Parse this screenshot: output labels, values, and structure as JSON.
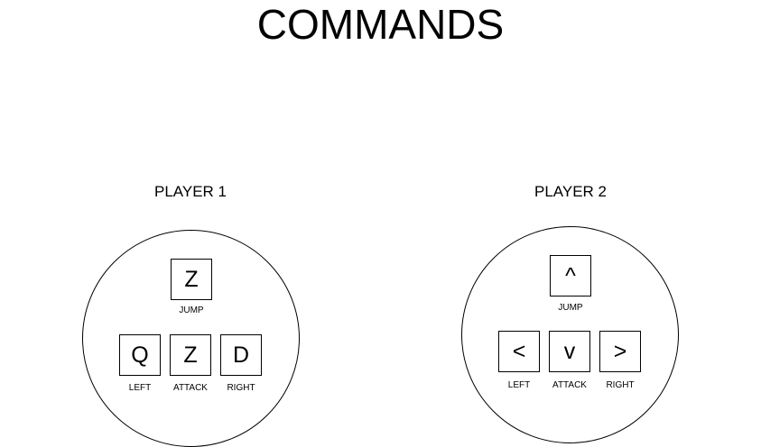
{
  "title": "COMMANDS",
  "players": [
    {
      "label": "PLAYER 1",
      "keys": {
        "jump": {
          "key": "Z",
          "label": "JUMP"
        },
        "left": {
          "key": "Q",
          "label": "LEFT"
        },
        "attack": {
          "key": "Z",
          "label": "ATTACK"
        },
        "right": {
          "key": "D",
          "label": "RIGHT"
        }
      }
    },
    {
      "label": "PLAYER 2",
      "keys": {
        "jump": {
          "key": "^",
          "label": "JUMP"
        },
        "left": {
          "key": "<",
          "label": "LEFT"
        },
        "attack": {
          "key": "v",
          "label": "ATTACK"
        },
        "right": {
          "key": ">",
          "label": "RIGHT"
        }
      }
    }
  ]
}
